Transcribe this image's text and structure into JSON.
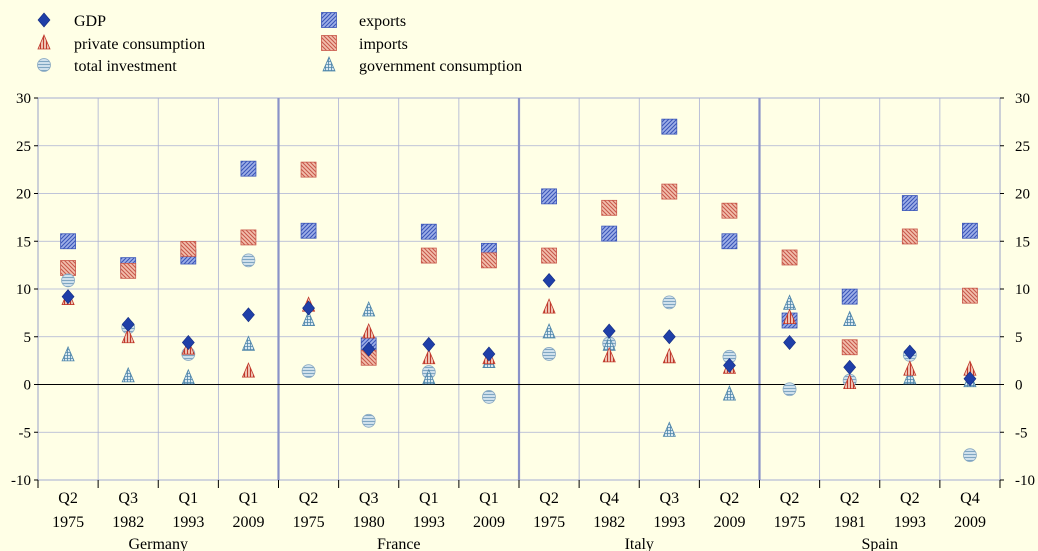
{
  "chart_data": {
    "type": "scatter",
    "ylim": [
      -10,
      30
    ],
    "yticks": [
      -10,
      -5,
      0,
      5,
      10,
      15,
      20,
      25,
      30
    ],
    "grid": true,
    "legend_position": "top-left",
    "groups": [
      {
        "name": "Germany",
        "periods": [
          {
            "quarter": "Q2",
            "year": "1975"
          },
          {
            "quarter": "Q3",
            "year": "1982"
          },
          {
            "quarter": "Q1",
            "year": "1993"
          },
          {
            "quarter": "Q1",
            "year": "2009"
          }
        ]
      },
      {
        "name": "France",
        "periods": [
          {
            "quarter": "Q2",
            "year": "1975"
          },
          {
            "quarter": "Q3",
            "year": "1980"
          },
          {
            "quarter": "Q1",
            "year": "1993"
          },
          {
            "quarter": "Q1",
            "year": "2009"
          }
        ]
      },
      {
        "name": "Italy",
        "periods": [
          {
            "quarter": "Q2",
            "year": "1975"
          },
          {
            "quarter": "Q4",
            "year": "1982"
          },
          {
            "quarter": "Q3",
            "year": "1993"
          },
          {
            "quarter": "Q2",
            "year": "2009"
          }
        ]
      },
      {
        "name": "Spain",
        "periods": [
          {
            "quarter": "Q2",
            "year": "1975"
          },
          {
            "quarter": "Q2",
            "year": "1981"
          },
          {
            "quarter": "Q2",
            "year": "1993"
          },
          {
            "quarter": "Q4",
            "year": "2009"
          }
        ]
      }
    ],
    "series": [
      {
        "name": "GDP",
        "marker": "diamond",
        "color": "#1f3fa8",
        "values": [
          9.2,
          6.3,
          4.4,
          7.3,
          8.0,
          3.7,
          4.2,
          3.2,
          10.9,
          5.6,
          5.0,
          2.0,
          4.4,
          1.8,
          3.4,
          0.6
        ]
      },
      {
        "name": "private consumption",
        "marker": "triangle-hatched",
        "color": "#c0392b",
        "values": [
          9.0,
          5.0,
          3.8,
          1.4,
          8.3,
          5.5,
          2.8,
          2.8,
          8.1,
          3.0,
          2.9,
          1.8,
          7.0,
          0.2,
          1.6,
          1.6
        ]
      },
      {
        "name": "total investment",
        "marker": "circle-striped",
        "color": "#6f9fbf",
        "values": [
          10.9,
          6.0,
          3.2,
          13.0,
          1.4,
          -3.8,
          1.3,
          -1.3,
          3.2,
          4.3,
          8.6,
          2.9,
          -0.5,
          0.4,
          3.1,
          -7.4
        ]
      },
      {
        "name": "exports",
        "marker": "square-hatched",
        "color": "#4060c0",
        "values": [
          15.0,
          12.5,
          13.4,
          22.6,
          16.1,
          4.1,
          16.0,
          14.0,
          19.7,
          15.8,
          27.0,
          15.0,
          6.7,
          9.2,
          19.0,
          16.1
        ]
      },
      {
        "name": "imports",
        "marker": "square-hatched",
        "color": "#e07b63",
        "values": [
          12.2,
          11.9,
          14.2,
          15.4,
          22.5,
          2.8,
          13.5,
          13.0,
          13.5,
          18.5,
          20.2,
          18.2,
          13.3,
          3.9,
          15.5,
          9.3
        ]
      },
      {
        "name": "government consumption",
        "marker": "triangle-grid",
        "color": "#5b8fb0",
        "values": [
          3.1,
          0.9,
          0.7,
          4.2,
          6.8,
          7.8,
          0.7,
          2.4,
          5.5,
          4.2,
          -4.8,
          -1.0,
          8.5,
          6.8,
          0.7,
          0.4
        ]
      }
    ]
  }
}
